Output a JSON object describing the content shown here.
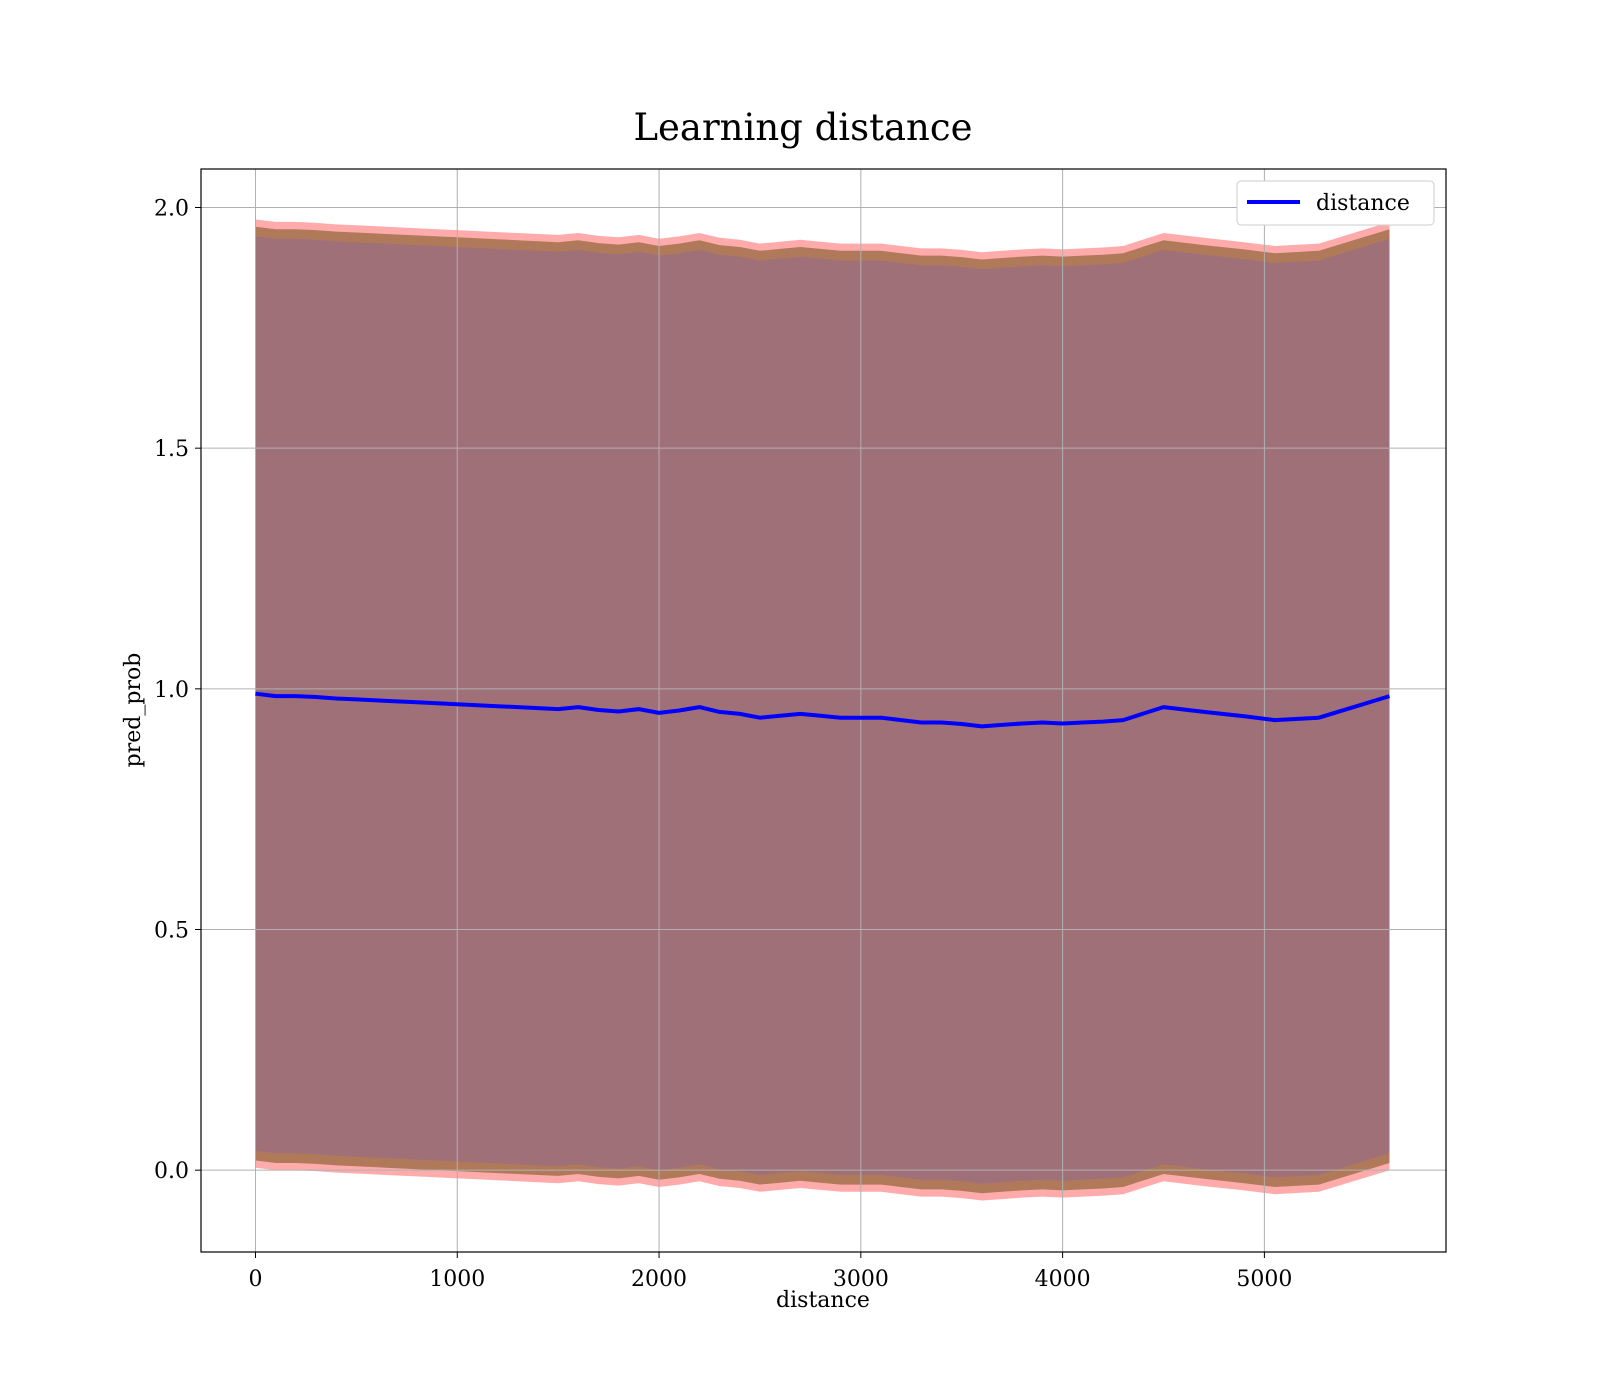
{
  "chart_data": {
    "type": "line",
    "title": "Learning distance",
    "xlabel": "distance",
    "ylabel": "pred_prob",
    "xlim": [
      -270,
      5900
    ],
    "ylim": [
      -0.17,
      2.08
    ],
    "xticks": [
      0,
      1000,
      2000,
      3000,
      4000,
      5000
    ],
    "yticks": [
      0.0,
      0.5,
      1.0,
      1.5,
      2.0
    ],
    "xtick_labels": [
      "0",
      "1000",
      "2000",
      "3000",
      "4000",
      "5000"
    ],
    "ytick_labels": [
      "0.0",
      "0.5",
      "1.0",
      "1.5",
      "2.0"
    ],
    "grid": true,
    "legend": {
      "position": "top-right",
      "entries": [
        "distance"
      ]
    },
    "colors": {
      "line": "#0000ff",
      "band_outer": "#ff6666",
      "band_mid": "#b07a5a",
      "band_inner": "#a07078",
      "grid": "#b0b0b0"
    },
    "series": [
      {
        "name": "distance",
        "x": [
          0,
          100,
          200,
          300,
          400,
          500,
          600,
          700,
          800,
          900,
          1000,
          1100,
          1200,
          1300,
          1400,
          1500,
          1600,
          1700,
          1800,
          1900,
          2000,
          2100,
          2200,
          2300,
          2400,
          2500,
          2600,
          2700,
          2800,
          2900,
          3000,
          3100,
          3200,
          3300,
          3400,
          3500,
          3600,
          3700,
          3800,
          3900,
          4000,
          4100,
          4200,
          4300,
          4500,
          4700,
          4900,
          5050,
          5270,
          5620
        ],
        "y": [
          0.99,
          0.985,
          0.985,
          0.983,
          0.98,
          0.978,
          0.976,
          0.974,
          0.972,
          0.97,
          0.968,
          0.966,
          0.964,
          0.962,
          0.96,
          0.958,
          0.962,
          0.956,
          0.953,
          0.958,
          0.95,
          0.955,
          0.962,
          0.952,
          0.948,
          0.94,
          0.944,
          0.948,
          0.944,
          0.94,
          0.94,
          0.94,
          0.935,
          0.93,
          0.93,
          0.927,
          0.922,
          0.925,
          0.928,
          0.93,
          0.928,
          0.93,
          0.932,
          0.935,
          0.962,
          0.952,
          0.943,
          0.935,
          0.94,
          0.985
        ]
      }
    ],
    "band_offsets": {
      "outer": 0.985,
      "mid": 0.97,
      "inner": 0.95
    }
  }
}
